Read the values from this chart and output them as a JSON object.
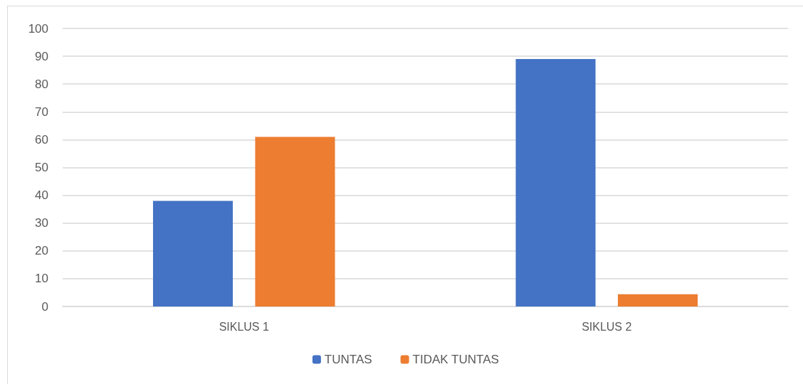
{
  "chart_data": {
    "type": "bar",
    "categories": [
      "SIKLUS 1",
      "SIKLUS 2"
    ],
    "series": [
      {
        "name": "TUNTAS",
        "color": "#4472c4",
        "values": [
          38,
          89
        ]
      },
      {
        "name": "TIDAK TUNTAS",
        "color": "#ed7d31",
        "values": [
          61,
          4.4
        ]
      }
    ],
    "ylim": [
      0,
      100
    ],
    "yticks": [
      0,
      10,
      20,
      30,
      40,
      50,
      60,
      70,
      80,
      90,
      100
    ],
    "grid": "y",
    "legend": "bottom"
  }
}
